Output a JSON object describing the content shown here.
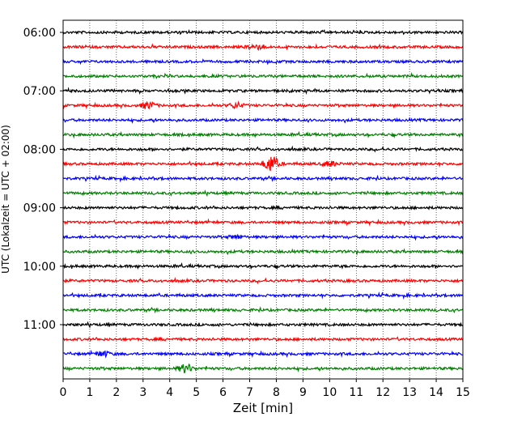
{
  "chart_data": {
    "type": "line",
    "title": "",
    "xlabel": "Zeit  [min]",
    "ylabel": "UTC (Lokalzeit = UTC + 02:00)",
    "xlim": [
      0,
      15
    ],
    "x_ticks": [
      0,
      1,
      2,
      3,
      4,
      5,
      6,
      7,
      8,
      9,
      10,
      11,
      12,
      13,
      14,
      15
    ],
    "y_tick_labels": [
      "06:00",
      "07:00",
      "08:00",
      "09:00",
      "10:00",
      "11:00"
    ],
    "grid": "vertical-dotted",
    "trace_minutes": 15,
    "trace_start": "06:00",
    "trace_count": 24,
    "color_cycle": [
      "#000000",
      "#ff0000",
      "#0000ff",
      "#008000"
    ],
    "events": [
      {
        "trace": 1,
        "minute": 7.2,
        "amplitude": 3
      },
      {
        "trace": 5,
        "minute": 3.2,
        "amplitude": 4
      },
      {
        "trace": 5,
        "minute": 6.5,
        "amplitude": 3
      },
      {
        "trace": 9,
        "minute": 7.8,
        "amplitude": 10
      },
      {
        "trace": 9,
        "minute": 10.0,
        "amplitude": 3
      },
      {
        "trace": 14,
        "minute": 6.5,
        "amplitude": 2
      },
      {
        "trace": 22,
        "minute": 1.5,
        "amplitude": 3
      },
      {
        "trace": 23,
        "minute": 4.6,
        "amplitude": 5
      }
    ]
  }
}
